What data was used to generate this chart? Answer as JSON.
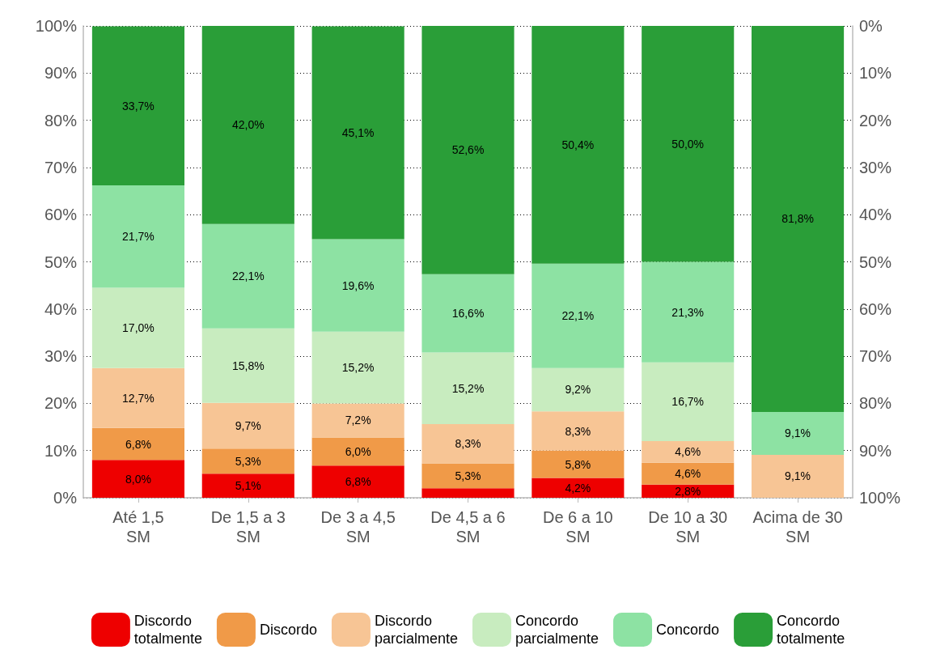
{
  "chart_data": {
    "type": "bar",
    "stacked": true,
    "categories": [
      "Até 1,5\nSM",
      "De 1,5 a 3\nSM",
      "De 3 a 4,5\nSM",
      "De 4,5 a 6\nSM",
      "De 6 a 10\nSM",
      "De 10 a 30\nSM",
      "Acima de 30\nSM"
    ],
    "series": [
      {
        "name": "Discordo\ntotalmente",
        "color": "#ee0000",
        "values": [
          8.0,
          5.1,
          6.8,
          2.0,
          4.2,
          2.8,
          0
        ],
        "value_labels": [
          "8,0%",
          "5,1%",
          "6,8%",
          null,
          "4,2%",
          "2,8%",
          null
        ]
      },
      {
        "name": "Discordo",
        "color": "#f09a48",
        "values": [
          6.8,
          5.3,
          6.0,
          5.3,
          5.8,
          4.6,
          0
        ],
        "value_labels": [
          "6,8%",
          "5,3%",
          "6,0%",
          "5,3%",
          "5,8%",
          "4,6%",
          null
        ]
      },
      {
        "name": "Discordo\nparcialmente",
        "color": "#f7c595",
        "values": [
          12.7,
          9.7,
          7.2,
          8.3,
          8.3,
          4.6,
          9.1
        ],
        "value_labels": [
          "12,7%",
          "9,7%",
          "7,2%",
          "8,3%",
          "8,3%",
          "4,6%",
          "9,1%"
        ]
      },
      {
        "name": "Concordo\nparcialmente",
        "color": "#c8ecbf",
        "values": [
          17.0,
          15.8,
          15.2,
          15.2,
          9.2,
          16.7,
          0
        ],
        "value_labels": [
          "17,0%",
          "15,8%",
          "15,2%",
          "15,2%",
          "9,2%",
          "16,7%",
          null
        ]
      },
      {
        "name": "Concordo",
        "color": "#8de2a3",
        "values": [
          21.7,
          22.1,
          19.6,
          16.6,
          22.1,
          21.3,
          9.1
        ],
        "value_labels": [
          "21,7%",
          "22,1%",
          "19,6%",
          "16,6%",
          "22,1%",
          "21,3%",
          "9,1%"
        ]
      },
      {
        "name": "Concordo\ntotalmente",
        "color": "#2a9e38",
        "values": [
          33.7,
          42.0,
          45.1,
          52.6,
          50.4,
          50.0,
          81.8
        ],
        "value_labels": [
          "33,7%",
          "42,0%",
          "45,1%",
          "52,6%",
          "50,4%",
          "50,0%",
          "81,8%"
        ]
      }
    ],
    "ylim": [
      0,
      100
    ],
    "yticks": [
      {
        "value": 0,
        "label": "0%"
      },
      {
        "value": 10,
        "label": "10%"
      },
      {
        "value": 20,
        "label": "20%"
      },
      {
        "value": 30,
        "label": "30%"
      },
      {
        "value": 40,
        "label": "40%"
      },
      {
        "value": 50,
        "label": "50%"
      },
      {
        "value": 60,
        "label": "60%"
      },
      {
        "value": 70,
        "label": "70%"
      },
      {
        "value": 80,
        "label": "80%"
      },
      {
        "value": 90,
        "label": "90%"
      },
      {
        "value": 100,
        "label": "100%"
      }
    ],
    "y2lim": [
      100,
      0
    ],
    "y2ticks": [
      {
        "value": 0,
        "label": "0%"
      },
      {
        "value": 10,
        "label": "10%"
      },
      {
        "value": 20,
        "label": "20%"
      },
      {
        "value": 30,
        "label": "30%"
      },
      {
        "value": 40,
        "label": "40%"
      },
      {
        "value": 50,
        "label": "50%"
      },
      {
        "value": 60,
        "label": "60%"
      },
      {
        "value": 70,
        "label": "70%"
      },
      {
        "value": 80,
        "label": "80%"
      },
      {
        "value": 90,
        "label": "90%"
      },
      {
        "value": 100,
        "label": "100%"
      }
    ],
    "grid": "y",
    "legend": "bottom"
  }
}
